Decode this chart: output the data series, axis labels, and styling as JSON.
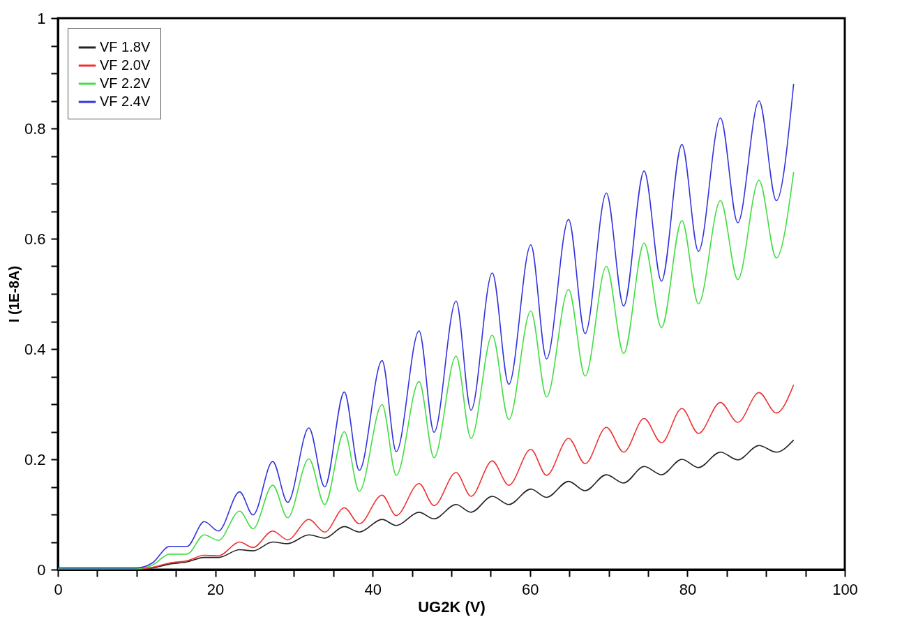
{
  "chart_data": {
    "type": "line",
    "xlabel": "UG2K (V)",
    "ylabel": "I (1E-8A)",
    "x": [
      0,
      10,
      12,
      14.2,
      16.4,
      18.6,
      20.4,
      23.1,
      24.8,
      27.3,
      29.2,
      31.9,
      33.9,
      36.4,
      38.3,
      41.2,
      43,
      45.9,
      47.8,
      50.6,
      52.5,
      55.2,
      57.3,
      60.1,
      62.1,
      64.9,
      67,
      69.7,
      71.9,
      74.5,
      76.7,
      79.3,
      81.4,
      84.2,
      86.4,
      89.1,
      91.3,
      93.5
    ],
    "series": [
      {
        "name": "VF 1.8V",
        "color": "#222222",
        "values": [
          0.001,
          0.001,
          0.003,
          0.01,
          0.014,
          0.022,
          0.022,
          0.036,
          0.034,
          0.05,
          0.047,
          0.063,
          0.057,
          0.078,
          0.068,
          0.091,
          0.08,
          0.104,
          0.092,
          0.118,
          0.104,
          0.133,
          0.118,
          0.146,
          0.131,
          0.16,
          0.143,
          0.172,
          0.157,
          0.187,
          0.172,
          0.2,
          0.185,
          0.213,
          0.199,
          0.225,
          0.213,
          0.235
        ]
      },
      {
        "name": "VF 2.0V",
        "color": "#ee3333",
        "values": [
          0.001,
          0.001,
          0.004,
          0.012,
          0.016,
          0.026,
          0.025,
          0.05,
          0.04,
          0.07,
          0.054,
          0.091,
          0.068,
          0.112,
          0.083,
          0.135,
          0.098,
          0.156,
          0.116,
          0.176,
          0.133,
          0.197,
          0.153,
          0.218,
          0.171,
          0.238,
          0.192,
          0.258,
          0.213,
          0.274,
          0.23,
          0.292,
          0.247,
          0.303,
          0.267,
          0.321,
          0.284,
          0.335
        ]
      },
      {
        "name": "VF 2.2V",
        "color": "#44dd44",
        "values": [
          0.002,
          0.002,
          0.008,
          0.028,
          0.028,
          0.063,
          0.053,
          0.106,
          0.074,
          0.153,
          0.094,
          0.201,
          0.118,
          0.25,
          0.142,
          0.299,
          0.171,
          0.341,
          0.203,
          0.387,
          0.238,
          0.425,
          0.272,
          0.469,
          0.313,
          0.508,
          0.351,
          0.55,
          0.392,
          0.592,
          0.439,
          0.633,
          0.482,
          0.669,
          0.526,
          0.706,
          0.565,
          0.721
        ]
      },
      {
        "name": "VF 2.4V",
        "color": "#3333dd",
        "values": [
          0.003,
          0.003,
          0.012,
          0.042,
          0.042,
          0.087,
          0.07,
          0.141,
          0.099,
          0.196,
          0.122,
          0.257,
          0.15,
          0.322,
          0.18,
          0.379,
          0.214,
          0.433,
          0.249,
          0.487,
          0.289,
          0.538,
          0.336,
          0.589,
          0.382,
          0.635,
          0.428,
          0.683,
          0.478,
          0.723,
          0.523,
          0.771,
          0.577,
          0.819,
          0.629,
          0.85,
          0.669,
          0.881
        ]
      }
    ],
    "xlim": [
      0,
      100
    ],
    "xticks": [
      0,
      {
        "value": 5,
        "label": null
      },
      {
        "value": 10,
        "label": null
      },
      {
        "value": 15,
        "label": null
      },
      20,
      {
        "value": 25,
        "label": null
      },
      {
        "value": 30,
        "label": null
      },
      {
        "value": 35,
        "label": null
      },
      40,
      {
        "value": 45,
        "label": null
      },
      {
        "value": 50,
        "label": null
      },
      {
        "value": 55,
        "label": null
      },
      60,
      {
        "value": 65,
        "label": null
      },
      {
        "value": 70,
        "label": null
      },
      {
        "value": 75,
        "label": null
      },
      80,
      {
        "value": 85,
        "label": null
      },
      {
        "value": 90,
        "label": null
      },
      {
        "value": 95,
        "label": null
      },
      100
    ],
    "ylim": [
      0,
      1
    ],
    "yticks": [
      0,
      {
        "value": 0.05,
        "label": null
      },
      {
        "value": 0.1,
        "label": null
      },
      {
        "value": 0.15,
        "label": null
      },
      0.2,
      {
        "value": 0.25,
        "label": null
      },
      {
        "value": 0.3,
        "label": null
      },
      {
        "value": 0.35,
        "label": null
      },
      0.4,
      {
        "value": 0.45,
        "label": null
      },
      {
        "value": 0.5,
        "label": null
      },
      {
        "value": 0.55,
        "label": null
      },
      0.6,
      {
        "value": 0.65,
        "label": null
      },
      {
        "value": 0.7,
        "label": null
      },
      {
        "value": 0.75,
        "label": null
      },
      0.8,
      {
        "value": 0.85,
        "label": null
      },
      {
        "value": 0.9,
        "label": null
      },
      {
        "value": 0.95,
        "label": null
      },
      1
    ],
    "grid": false,
    "legend": "top left",
    "marker": "none",
    "line_style": "solid"
  }
}
